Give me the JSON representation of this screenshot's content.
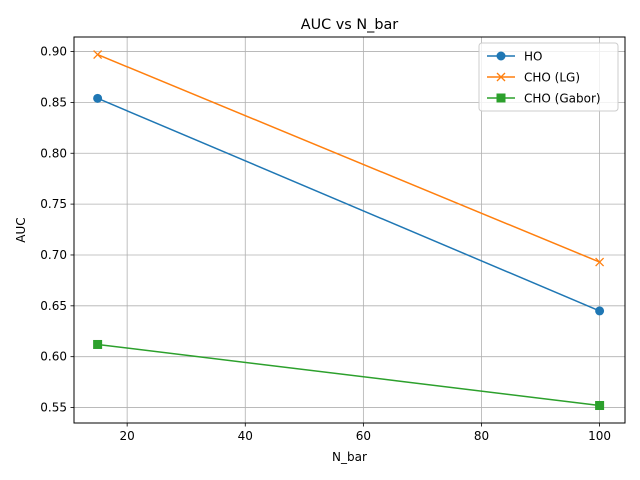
{
  "chart_data": {
    "type": "line",
    "title": "AUC vs N_bar",
    "xlabel": "N_bar",
    "ylabel": "AUC",
    "xlim": [
      11,
      104.3
    ],
    "ylim": [
      0.5348,
      0.9143
    ],
    "xticks": [
      20,
      40,
      60,
      80,
      100
    ],
    "xtick_labels": [
      "20",
      "40",
      "60",
      "80",
      "100"
    ],
    "yticks": [
      0.55,
      0.6,
      0.65,
      0.7,
      0.75,
      0.8,
      0.85,
      0.9
    ],
    "ytick_labels": [
      "0.55",
      "0.60",
      "0.65",
      "0.70",
      "0.75",
      "0.80",
      "0.85",
      "0.90"
    ],
    "grid": true,
    "legend_position": "top-right",
    "x": [
      15,
      100
    ],
    "series": [
      {
        "name": "HO",
        "values": [
          0.854,
          0.645
        ],
        "color": "#1f77b4",
        "marker": "circle"
      },
      {
        "name": "CHO (LG)",
        "values": [
          0.897,
          0.693
        ],
        "color": "#ff7f0e",
        "marker": "x"
      },
      {
        "name": "CHO (Gabor)",
        "values": [
          0.612,
          0.552
        ],
        "color": "#2ca02c",
        "marker": "square"
      }
    ]
  }
}
